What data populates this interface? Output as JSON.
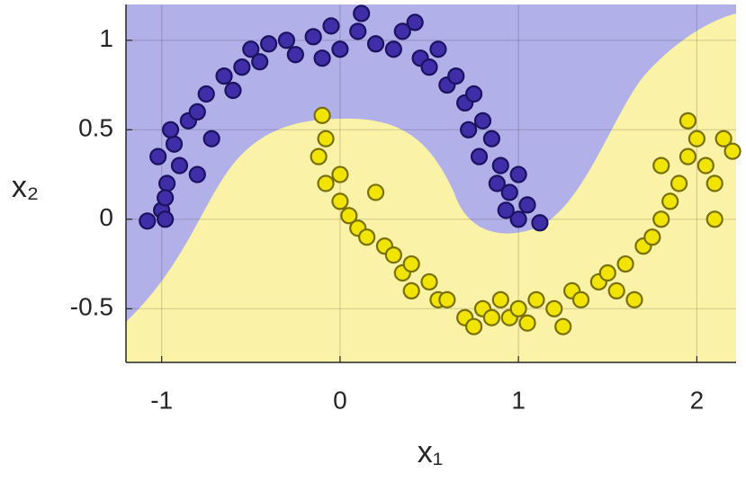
{
  "chart_data": {
    "type": "scatter",
    "xlabel": "x₁",
    "ylabel": "x₂",
    "xlim": [
      -1.2,
      2.22
    ],
    "ylim": [
      -0.8,
      1.2
    ],
    "xticks": [
      -1,
      0,
      1,
      2
    ],
    "yticks": [
      -0.5,
      0,
      0.5,
      1
    ],
    "grid": true,
    "series": [
      {
        "color": "#3f2ea8",
        "x": [
          -1.08,
          -1.0,
          -0.97,
          -1.02,
          -0.93,
          -0.98,
          -0.9,
          -0.85,
          -0.95,
          -0.8,
          -0.75,
          -0.72,
          -0.65,
          -0.6,
          -0.55,
          -0.5,
          -0.45,
          -0.4,
          -0.3,
          -0.25,
          -0.15,
          -0.1,
          -0.05,
          0.0,
          0.1,
          0.12,
          0.2,
          0.3,
          0.35,
          0.42,
          0.45,
          0.5,
          0.55,
          0.6,
          0.65,
          0.7,
          0.75,
          0.72,
          0.8,
          0.85,
          0.78,
          0.9,
          0.88,
          0.95,
          1.0,
          0.93,
          1.05,
          1.0,
          1.12,
          -0.8,
          -0.98
        ],
        "values": [
          -0.01,
          0.05,
          0.2,
          0.35,
          0.42,
          0.12,
          0.3,
          0.55,
          0.5,
          0.6,
          0.7,
          0.45,
          0.8,
          0.72,
          0.85,
          0.95,
          0.88,
          0.98,
          1.0,
          0.92,
          1.02,
          0.9,
          1.08,
          0.95,
          1.05,
          1.15,
          0.98,
          0.95,
          1.05,
          1.1,
          0.9,
          0.85,
          0.95,
          0.75,
          0.8,
          0.65,
          0.7,
          0.5,
          0.55,
          0.45,
          0.35,
          0.3,
          0.2,
          0.15,
          0.25,
          0.05,
          0.08,
          0.0,
          -0.02,
          0.25,
          0.0
        ]
      },
      {
        "color": "#f0e400",
        "x": [
          -0.1,
          -0.08,
          -0.12,
          -0.08,
          0.0,
          0.0,
          0.05,
          0.1,
          0.15,
          0.2,
          0.25,
          0.3,
          0.35,
          0.4,
          0.4,
          0.5,
          0.55,
          0.6,
          0.7,
          0.75,
          0.8,
          0.85,
          0.9,
          0.95,
          1.0,
          1.05,
          1.1,
          1.2,
          1.25,
          1.3,
          1.35,
          1.45,
          1.5,
          1.55,
          1.6,
          1.65,
          1.7,
          1.75,
          1.8,
          1.85,
          1.9,
          1.95,
          2.0,
          1.95,
          2.05,
          2.1,
          2.15,
          2.2,
          2.1,
          1.8
        ],
        "values": [
          0.58,
          0.45,
          0.35,
          0.2,
          0.25,
          0.1,
          0.02,
          -0.05,
          -0.1,
          0.15,
          -0.15,
          -0.2,
          -0.3,
          -0.25,
          -0.4,
          -0.35,
          -0.45,
          -0.45,
          -0.55,
          -0.6,
          -0.5,
          -0.55,
          -0.45,
          -0.55,
          -0.5,
          -0.58,
          -0.45,
          -0.5,
          -0.6,
          -0.4,
          -0.45,
          -0.35,
          -0.3,
          -0.4,
          -0.25,
          -0.45,
          -0.15,
          -0.1,
          0.0,
          0.1,
          0.2,
          0.35,
          0.45,
          0.55,
          0.3,
          0.2,
          0.45,
          0.38,
          0.0,
          0.3
        ]
      }
    ]
  }
}
